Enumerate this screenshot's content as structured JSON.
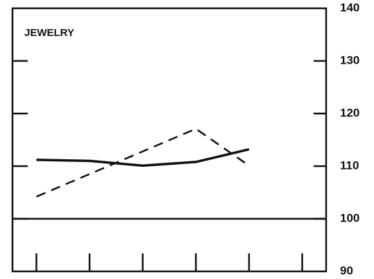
{
  "chart_data": {
    "type": "line",
    "title": "JEWELRY",
    "x": [
      0,
      1,
      2,
      3,
      4
    ],
    "series": [
      {
        "color": "#111111",
        "dashed": false,
        "values": [
          111.2,
          111,
          110.1,
          110.8,
          113.2
        ]
      },
      {
        "color": "#111111",
        "dashed": true,
        "values": [
          104.2,
          108.5,
          112.8,
          117.1,
          110.1
        ]
      }
    ],
    "xlim": [
      -0.45,
      5.45
    ],
    "xticks": [
      0,
      1,
      2,
      3,
      4,
      5
    ],
    "ylim": [
      90,
      140
    ],
    "yticks": [
      90,
      100,
      110,
      120,
      130,
      140
    ],
    "reference_line": 100
  }
}
